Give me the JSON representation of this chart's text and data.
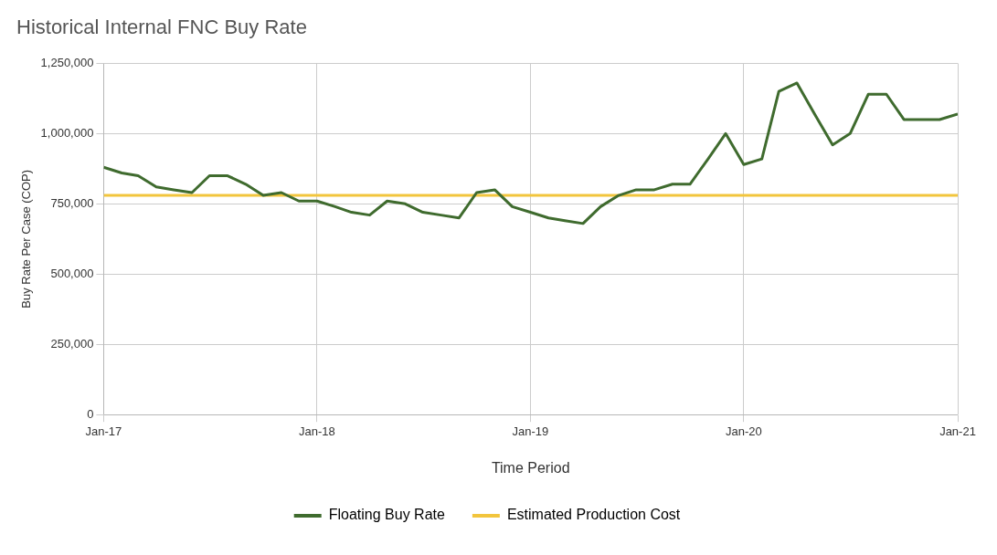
{
  "chart_data": {
    "type": "line",
    "title": "Historical Internal FNC Buy Rate",
    "xlabel": "Time Period",
    "ylabel": "Buy Rate Per Case (COP)",
    "x": [
      "2017-01",
      "2017-02",
      "2017-03",
      "2017-04",
      "2017-05",
      "2017-06",
      "2017-07",
      "2017-08",
      "2017-09",
      "2017-10",
      "2017-11",
      "2017-12",
      "2018-01",
      "2018-02",
      "2018-03",
      "2018-04",
      "2018-05",
      "2018-06",
      "2018-07",
      "2018-08",
      "2018-09",
      "2018-10",
      "2018-11",
      "2018-12",
      "2019-01",
      "2019-02",
      "2019-03",
      "2019-04",
      "2019-05",
      "2019-06",
      "2019-07",
      "2019-08",
      "2019-09",
      "2019-10",
      "2019-11",
      "2019-12",
      "2020-01",
      "2020-02",
      "2020-03",
      "2020-04",
      "2020-05",
      "2020-06",
      "2020-07",
      "2020-08",
      "2020-09",
      "2020-10",
      "2020-11",
      "2020-12",
      "2021-01"
    ],
    "series": [
      {
        "name": "Floating Buy Rate",
        "color": "#3f6b2e",
        "values": [
          880000,
          860000,
          850000,
          810000,
          800000,
          790000,
          850000,
          850000,
          820000,
          780000,
          790000,
          760000,
          760000,
          740000,
          720000,
          710000,
          760000,
          750000,
          720000,
          710000,
          700000,
          790000,
          800000,
          740000,
          720000,
          700000,
          690000,
          680000,
          740000,
          780000,
          800000,
          800000,
          820000,
          820000,
          910000,
          1000000,
          890000,
          910000,
          1150000,
          1180000,
          1070000,
          960000,
          1000000,
          1140000,
          1140000,
          1050000,
          1050000,
          1050000,
          1070000
        ]
      },
      {
        "name": "Estimated Production Cost",
        "color": "#f2c53d",
        "x": [
          "2017-01",
          "2021-01"
        ],
        "values": [
          780000,
          780000
        ]
      }
    ],
    "xlim": [
      "2017-01",
      "2021-01"
    ],
    "xticks": [
      {
        "value": "2017-01",
        "label": "Jan-17"
      },
      {
        "value": "2018-01",
        "label": "Jan-18"
      },
      {
        "value": "2019-01",
        "label": "Jan-19"
      },
      {
        "value": "2020-01",
        "label": "Jan-20"
      },
      {
        "value": "2021-01",
        "label": "Jan-21"
      }
    ],
    "ylim": [
      0,
      1250000
    ],
    "yticks": [
      0,
      {
        "value": 250000,
        "label": "250,000"
      },
      {
        "value": 500000,
        "label": "500,000"
      },
      {
        "value": 750000,
        "label": "750,000"
      },
      {
        "value": 1000000,
        "label": "1,000,000"
      },
      {
        "value": 1250000,
        "label": "1,250,000"
      }
    ],
    "grid": true,
    "legend": "bottom",
    "marker": "none",
    "line_style": "solid"
  }
}
